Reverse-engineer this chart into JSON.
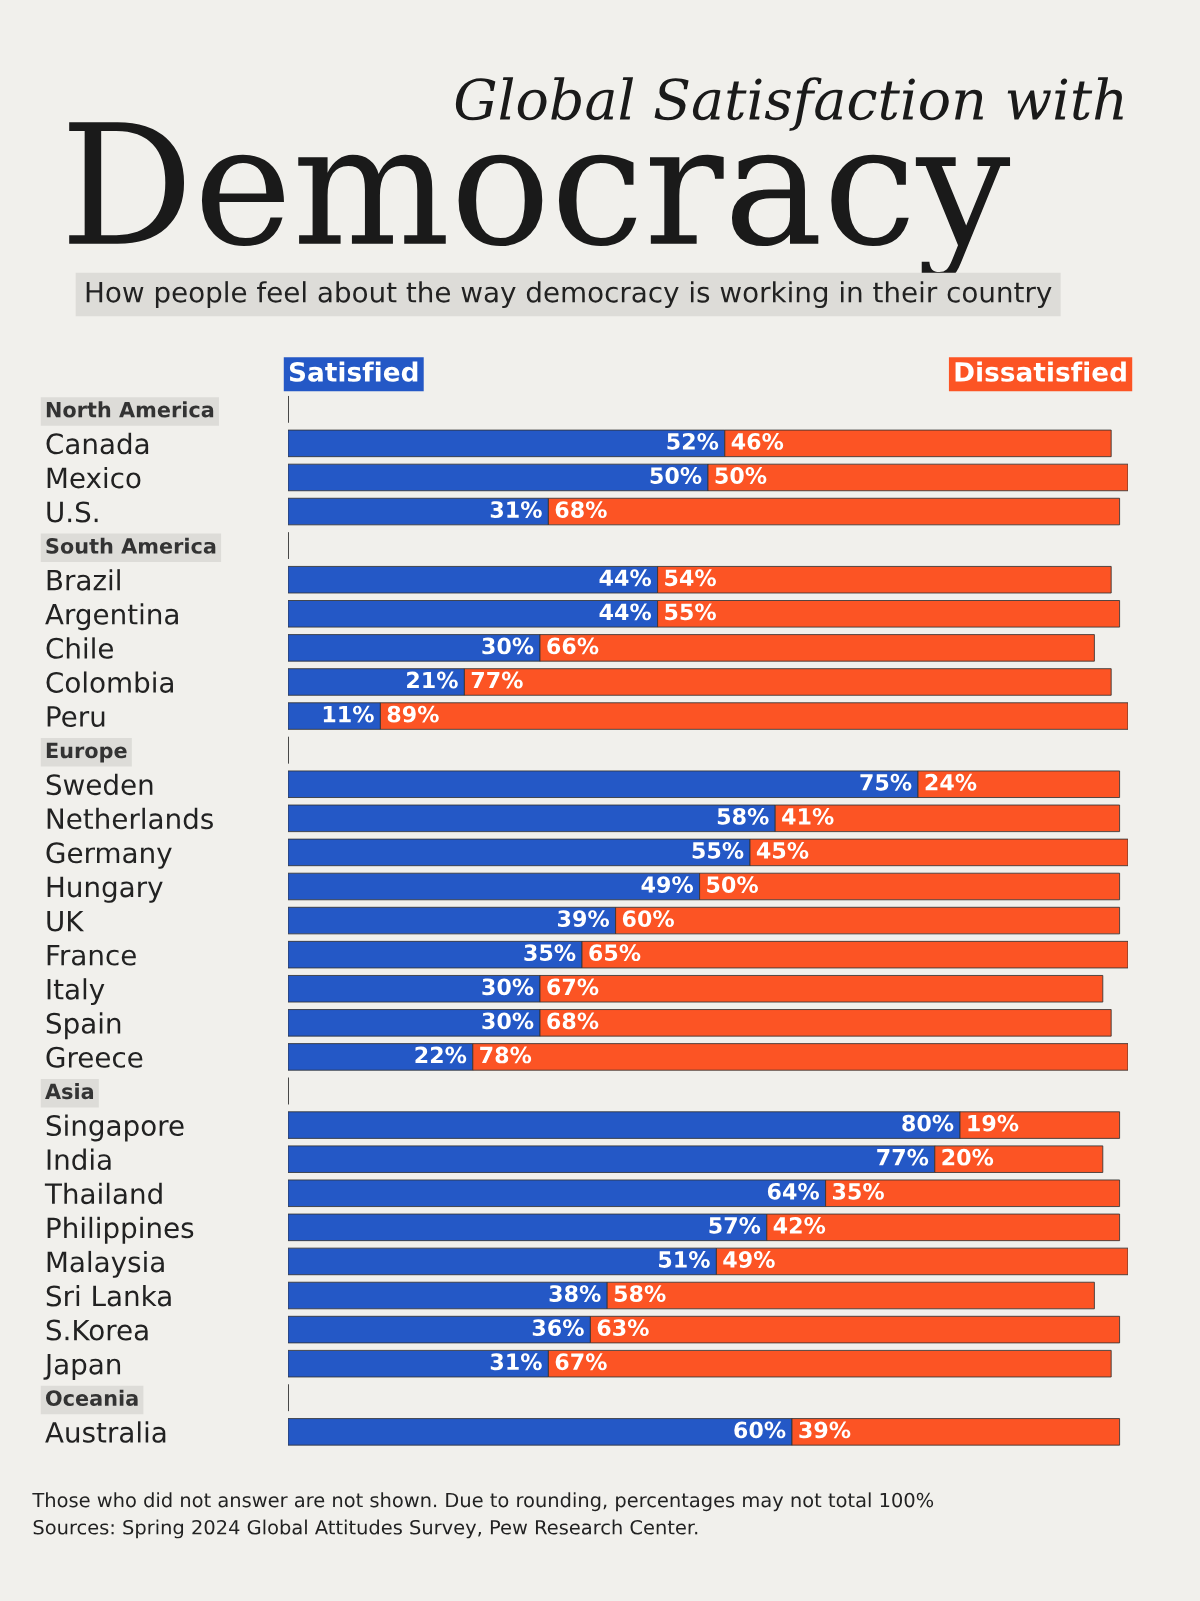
{
  "chart_data": {
    "type": "bar",
    "orientation": "horizontal",
    "stacked": true,
    "title": "Global Satisfaction with Democracy",
    "subtitle": "How people feel about the way democracy is working in their country",
    "categories": [
      "North America",
      "Canada",
      "Mexico",
      "U.S.",
      "South America",
      "Brazil",
      "Argentina",
      "Chile",
      "Colombia",
      "Peru",
      "Europe",
      "Sweden",
      "Netherlands",
      "Germany",
      "Hungary",
      "UK",
      "France",
      "Italy",
      "Spain",
      "Greece",
      "Asia",
      "Singapore",
      "India",
      "Thailand",
      "Philippines",
      "Malaysia",
      "Sri Lanka",
      "S.Korea",
      "Japan",
      "Oceania",
      "Australia"
    ],
    "series": [
      {
        "name": "Satisfied",
        "color": "#2458c6",
        "values": [
          null,
          52,
          50,
          31,
          null,
          44,
          44,
          30,
          21,
          11,
          null,
          75,
          58,
          55,
          49,
          39,
          35,
          30,
          30,
          22,
          null,
          80,
          77,
          64,
          57,
          51,
          38,
          36,
          31,
          null,
          60
        ],
        "value_labels": [
          null,
          "52%",
          "50%",
          "31%",
          null,
          "44%",
          "44%",
          "30%",
          "21%",
          "11%",
          null,
          "75%",
          "58%",
          "55%",
          "49%",
          "39%",
          "35%",
          "30%",
          "30%",
          "22%",
          null,
          "80%",
          "77%",
          "64%",
          "57%",
          "51%",
          "38%",
          "36%",
          "31%",
          null,
          "60%"
        ]
      },
      {
        "name": "Dissatisfied",
        "color": "#fc5424",
        "values": [
          null,
          46,
          50,
          68,
          null,
          54,
          55,
          66,
          77,
          89,
          null,
          24,
          41,
          45,
          50,
          60,
          65,
          67,
          68,
          78,
          null,
          19,
          20,
          35,
          42,
          49,
          58,
          63,
          67,
          null,
          39
        ],
        "value_labels": [
          null,
          "46%",
          "50%",
          "68%",
          null,
          "54%",
          "55%",
          "66%",
          "77%",
          "89%",
          null,
          "24%",
          "41%",
          "45%",
          "50%",
          "60%",
          "65%",
          "67%",
          "68%",
          "78%",
          null,
          "19%",
          "20%",
          "35%",
          "42%",
          "49%",
          "58%",
          "63%",
          "67%",
          null,
          "39%"
        ]
      }
    ],
    "tick_labels": "y",
    "legend": "top",
    "annotations": [
      "Those who did not answer are not shown. Due to rounding, percentages may not total 100%",
      "Sources: Spring 2024 Global Attitudes Survey, Pew Research Center."
    ]
  }
}
